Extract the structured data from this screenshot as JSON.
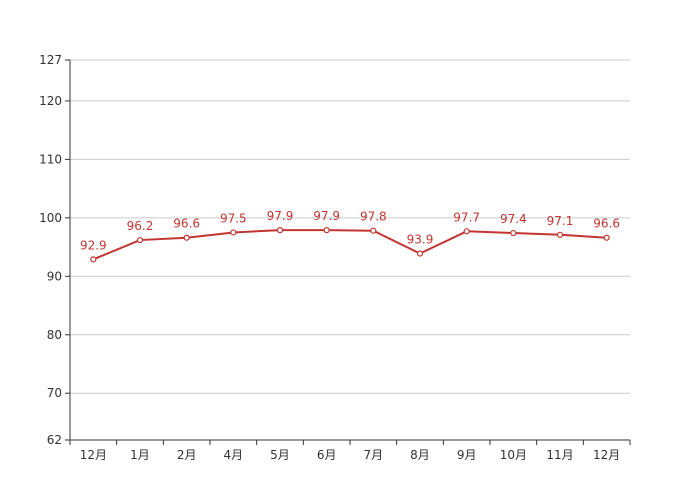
{
  "chart_data": {
    "type": "line",
    "categories": [
      "12月",
      "1月",
      "2月",
      "4月",
      "5月",
      "6月",
      "7月",
      "8月",
      "9月",
      "10月",
      "11月",
      "12月"
    ],
    "series": [
      {
        "values": [
          92.9,
          96.2,
          96.6,
          97.5,
          97.9,
          97.9,
          97.8,
          93.9,
          97.7,
          97.4,
          97.1,
          96.6
        ]
      }
    ],
    "y_ticks": [
      62,
      70,
      80,
      90,
      100,
      110,
      120,
      127
    ],
    "ylim": [
      62,
      127
    ],
    "grid": true,
    "line_color": "#c23531",
    "data_label_color": "#c23531",
    "title": "",
    "xlabel": "",
    "ylabel": ""
  }
}
